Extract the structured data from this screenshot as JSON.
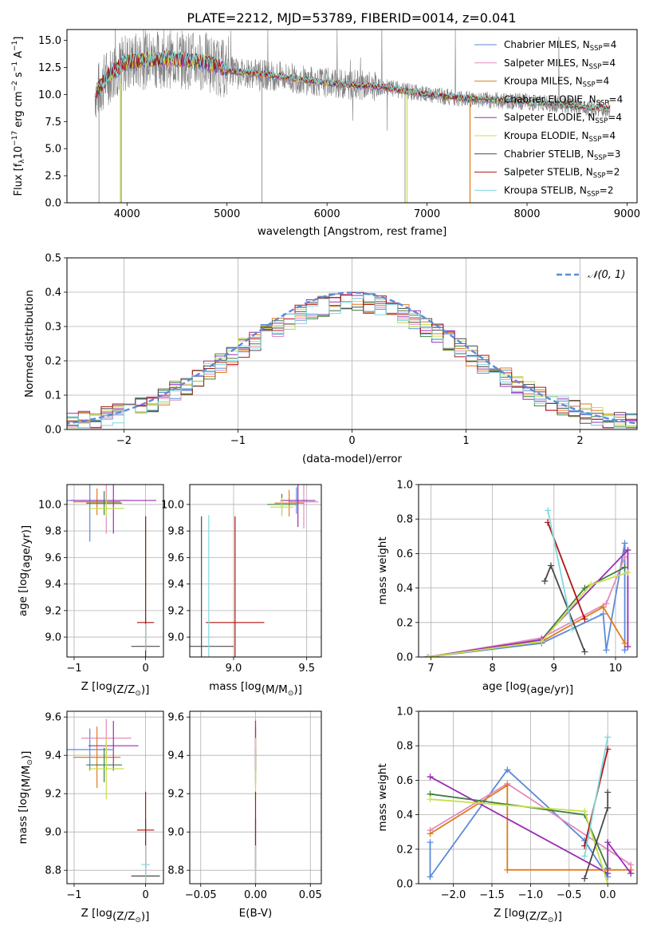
{
  "figure_title": "PLATE=2212, MJD=53789, FIBERID=0014, z=0.041",
  "models": [
    {
      "name": "Chabrier MILES, N_SSP=4",
      "label": "Chabrier MILES, N",
      "sub": "SSP",
      "eq": "=4",
      "color": "#5b8bd9"
    },
    {
      "name": "Salpeter MILES, N_SSP=4",
      "label": "Salpeter MILES, N",
      "sub": "SSP",
      "eq": "=4",
      "color": "#e38bc0"
    },
    {
      "name": "Kroupa MILES, N_SSP=4",
      "label": "Kroupa MILES, N",
      "sub": "SSP",
      "eq": "=4",
      "color": "#e07b1c"
    },
    {
      "name": "Chabrier ELODIE, N_SSP=4",
      "label": "Chabrier ELODIE, N",
      "sub": "SSP",
      "eq": "=4",
      "color": "#3f7f3f"
    },
    {
      "name": "Salpeter ELODIE, N_SSP=4",
      "label": "Salpeter ELODIE, N",
      "sub": "SSP",
      "eq": "=4",
      "color": "#9b2fb0"
    },
    {
      "name": "Kroupa ELODIE, N_SSP=4",
      "label": "Kroupa ELODIE, N",
      "sub": "SSP",
      "eq": "=4",
      "color": "#c8e04a"
    },
    {
      "name": "Chabrier STELIB, N_SSP=3",
      "label": "Chabrier STELIB, N",
      "sub": "SSP",
      "eq": "=3",
      "color": "#4a4a4a"
    },
    {
      "name": "Salpeter STELIB, N_SSP=2",
      "label": "Salpeter STELIB, N",
      "sub": "SSP",
      "eq": "=2",
      "color": "#b01515"
    },
    {
      "name": "Kroupa STELIB, N_SSP=2",
      "label": "Kroupa STELIB, N",
      "sub": "SSP",
      "eq": "=2",
      "color": "#7fd8de"
    }
  ],
  "chart_data": [
    {
      "type": "line",
      "title": "PLATE=2212, MJD=53789, FIBERID=0014, z=0.041",
      "xlabel": "wavelength [Angstrom, rest frame]",
      "ylabel": "Flux [f_λ 10^-17 erg cm^-2 s^-1 A^-1]",
      "xlim": [
        3400,
        9100
      ],
      "ylim": [
        0,
        16
      ],
      "xticks": [
        4000,
        5000,
        6000,
        7000,
        8000,
        9000
      ],
      "yticks": [
        0.0,
        2.5,
        5.0,
        7.5,
        10.0,
        12.5,
        15.0
      ],
      "legend": "upper right",
      "grid": false,
      "continuum": {
        "x": [
          3700,
          3800,
          3900,
          4000,
          4200,
          4400,
          4600,
          4800,
          4900,
          5000,
          5200,
          5400,
          5600,
          5800,
          6000,
          6200,
          6400,
          6600,
          6800,
          7000,
          7200,
          7400,
          7600,
          7800,
          8000,
          8200,
          8400,
          8600,
          8800
        ],
        "y": [
          10.2,
          11.6,
          12.4,
          13.0,
          13.2,
          13.3,
          13.2,
          13.0,
          12.6,
          12.2,
          12.0,
          11.8,
          11.6,
          11.3,
          11.1,
          10.9,
          10.8,
          10.6,
          10.3,
          10.0,
          9.8,
          9.6,
          9.5,
          9.4,
          9.3,
          9.2,
          9.0,
          8.8,
          8.7
        ]
      }
    },
    {
      "type": "bar",
      "xlabel": "(data-model)/error",
      "ylabel": "Normed distribution",
      "xlim": [
        -2.5,
        2.5
      ],
      "ylim": [
        0,
        0.5
      ],
      "xticks": [
        -2,
        -1,
        0,
        1,
        2
      ],
      "yticks": [
        0.0,
        0.1,
        0.2,
        0.3,
        0.4,
        0.5
      ],
      "grid": true,
      "legend": "upper right",
      "reference_label": "𝒩(0, 1)",
      "reference_color": "#5b8bd9"
    },
    {
      "type": "scatter",
      "xlabel": "Z [log10(Z/Z⊙)]",
      "ylabel": "age  [log10(age/yr)]",
      "xlim": [
        -1.1,
        0.25
      ],
      "ylim": [
        8.85,
        10.15
      ],
      "xticks": [
        -1,
        0
      ],
      "yticks": [
        9.0,
        9.2,
        9.4,
        9.6,
        9.8,
        10.0
      ],
      "grid": true,
      "points": [
        {
          "x": -0.78,
          "y": 10.03,
          "xerr": 0.32,
          "yerr": 0.31,
          "model": 0
        },
        {
          "x": -0.55,
          "y": 10.03,
          "xerr": 0.35,
          "yerr": 0.25,
          "model": 1
        },
        {
          "x": -0.68,
          "y": 10.02,
          "xerr": 0.33,
          "yerr": 0.1,
          "model": 2
        },
        {
          "x": -0.58,
          "y": 10.01,
          "xerr": 0.25,
          "yerr": 0.09,
          "model": 3
        },
        {
          "x": -0.45,
          "y": 10.03,
          "xerr": 0.6,
          "yerr": 0.25,
          "model": 4
        },
        {
          "x": -0.55,
          "y": 9.97,
          "xerr": 0.25,
          "yerr": 0.07,
          "model": 5
        },
        {
          "x": 0.0,
          "y": 8.93,
          "xerr": 0.2,
          "yerr": 0.98,
          "model": 6
        },
        {
          "x": 0.0,
          "y": 9.11,
          "xerr": 0.12,
          "yerr": 0.8,
          "model": 7
        },
        {
          "x": 0.0,
          "y": 9.0,
          "xerr": 0.02,
          "yerr": 0.1,
          "model": 8
        }
      ]
    },
    {
      "type": "scatter",
      "xlabel": "mass [log10(M/M⊙)]",
      "ylabel": "",
      "xlim": [
        8.7,
        9.6
      ],
      "ylim": [
        8.85,
        10.15
      ],
      "xticks": [
        9.0,
        9.5
      ],
      "yticks": [
        9.0,
        9.2,
        9.4,
        9.6,
        9.8,
        10.0
      ],
      "grid": true,
      "points": [
        {
          "x": 9.43,
          "y": 10.03,
          "xerr": 0.08,
          "yerr": 0.1,
          "model": 0
        },
        {
          "x": 9.48,
          "y": 10.02,
          "xerr": 0.1,
          "yerr": 0.2,
          "model": 1
        },
        {
          "x": 9.38,
          "y": 10.01,
          "xerr": 0.1,
          "yerr": 0.1,
          "model": 2
        },
        {
          "x": 9.33,
          "y": 10.0,
          "xerr": 0.1,
          "yerr": 0.08,
          "model": 3
        },
        {
          "x": 9.44,
          "y": 10.03,
          "xerr": 0.12,
          "yerr": 0.2,
          "model": 4
        },
        {
          "x": 9.33,
          "y": 9.98,
          "xerr": 0.08,
          "yerr": 0.07,
          "model": 5
        },
        {
          "x": 8.78,
          "y": 8.93,
          "xerr": 0.22,
          "yerr": 0.98,
          "model": 6
        },
        {
          "x": 9.01,
          "y": 9.11,
          "xerr": 0.2,
          "yerr": 0.8,
          "model": 7
        },
        {
          "x": 8.83,
          "y": 9.0,
          "xerr": 0.02,
          "yerr": 0.92,
          "model": 8
        }
      ]
    },
    {
      "type": "line",
      "xlabel": "age  [log10(age/yr)]",
      "ylabel": "mass weight",
      "xlim": [
        6.8,
        10.35
      ],
      "ylim": [
        0,
        1
      ],
      "xticks": [
        7,
        8,
        9,
        10
      ],
      "yticks": [
        0.0,
        0.2,
        0.4,
        0.6,
        0.8,
        1.0
      ],
      "grid": true,
      "series": [
        {
          "model": 0,
          "x": [
            6.95,
            8.8,
            9.8,
            9.85,
            10.15,
            10.15
          ],
          "y": [
            0.0,
            0.08,
            0.25,
            0.04,
            0.66,
            0.04
          ]
        },
        {
          "model": 1,
          "x": [
            6.95,
            8.8,
            9.85,
            10.15
          ],
          "y": [
            0.0,
            0.11,
            0.31,
            0.58
          ]
        },
        {
          "model": 2,
          "x": [
            6.95,
            8.8,
            9.8,
            10.15
          ],
          "y": [
            0.0,
            0.09,
            0.29,
            0.08
          ]
        },
        {
          "model": 3,
          "x": [
            6.95,
            8.8,
            9.5,
            10.15
          ],
          "y": [
            0.0,
            0.1,
            0.4,
            0.52
          ]
        },
        {
          "model": 4,
          "x": [
            6.95,
            8.8,
            10.2,
            10.2
          ],
          "y": [
            0.0,
            0.1,
            0.62,
            0.06
          ]
        },
        {
          "model": 5,
          "x": [
            6.95,
            8.8,
            9.6,
            10.2
          ],
          "y": [
            0.0,
            0.09,
            0.42,
            0.49
          ]
        },
        {
          "model": 6,
          "x": [
            8.85,
            8.95,
            9.5
          ],
          "y": [
            0.44,
            0.53,
            0.03
          ]
        },
        {
          "model": 7,
          "x": [
            8.9,
            9.5
          ],
          "y": [
            0.78,
            0.22
          ]
        },
        {
          "model": 8,
          "x": [
            8.9,
            9.3
          ],
          "y": [
            0.85,
            0.16
          ]
        }
      ]
    },
    {
      "type": "scatter",
      "xlabel": "Z [log10(Z/Z⊙)]",
      "ylabel": "mass [log10(M/M⊙)]",
      "xlim": [
        -1.1,
        0.25
      ],
      "ylim": [
        8.73,
        9.63
      ],
      "xticks": [
        -1,
        0
      ],
      "yticks": [
        8.8,
        9.0,
        9.2,
        9.4,
        9.6
      ],
      "grid": true,
      "points": [
        {
          "x": -0.78,
          "y": 9.43,
          "xerr": 0.32,
          "yerr": 0.11,
          "model": 0
        },
        {
          "x": -0.55,
          "y": 9.49,
          "xerr": 0.35,
          "yerr": 0.1,
          "model": 1
        },
        {
          "x": -0.68,
          "y": 9.39,
          "xerr": 0.33,
          "yerr": 0.16,
          "model": 2
        },
        {
          "x": -0.58,
          "y": 9.35,
          "xerr": 0.25,
          "yerr": 0.09,
          "model": 3
        },
        {
          "x": -0.45,
          "y": 9.45,
          "xerr": 0.35,
          "yerr": 0.13,
          "model": 4
        },
        {
          "x": -0.55,
          "y": 9.33,
          "xerr": 0.25,
          "yerr": 0.16,
          "model": 5
        },
        {
          "x": 0.0,
          "y": 8.77,
          "xerr": 0.2,
          "yerr": 0.3,
          "model": 6
        },
        {
          "x": 0.0,
          "y": 9.01,
          "xerr": 0.12,
          "yerr": 0.2,
          "model": 7
        },
        {
          "x": 0.0,
          "y": 8.83,
          "xerr": 0.06,
          "yerr": 0.1,
          "model": 8
        }
      ]
    },
    {
      "type": "scatter",
      "xlabel": "E(B-V)",
      "ylabel": "",
      "xlim": [
        -0.06,
        0.06
      ],
      "ylim": [
        8.73,
        9.63
      ],
      "xticks": [
        -0.05,
        0.0,
        0.05
      ],
      "yticks": [
        8.8,
        9.0,
        9.2,
        9.4,
        9.6
      ],
      "grid": true,
      "points": [
        {
          "x": 0.0,
          "y": 9.43,
          "yerr": 0.11,
          "model": 0
        },
        {
          "x": 0.0,
          "y": 9.49,
          "yerr": 0.1,
          "model": 1
        },
        {
          "x": 0.0,
          "y": 9.39,
          "yerr": 0.16,
          "model": 2
        },
        {
          "x": 0.0,
          "y": 9.35,
          "yerr": 0.09,
          "model": 3
        },
        {
          "x": 0.0,
          "y": 9.45,
          "yerr": 0.13,
          "model": 4
        },
        {
          "x": 0.0,
          "y": 9.33,
          "yerr": 0.16,
          "model": 5
        },
        {
          "x": 0.0,
          "y": 8.77,
          "yerr": 0.3,
          "model": 6
        },
        {
          "x": 0.0,
          "y": 9.01,
          "yerr": 0.2,
          "model": 7
        },
        {
          "x": 0.0,
          "y": 8.83,
          "yerr": 0.1,
          "model": 8
        }
      ]
    },
    {
      "type": "line",
      "xlabel": "Z [log10(Z/Z⊙)]",
      "ylabel": "mass weight",
      "xlim": [
        -2.45,
        0.38
      ],
      "ylim": [
        0,
        1
      ],
      "xticks": [
        -2.0,
        -1.5,
        -1.0,
        -0.5,
        0.0
      ],
      "yticks": [
        0.0,
        0.2,
        0.4,
        0.6,
        0.8,
        1.0
      ],
      "grid": true,
      "series": [
        {
          "model": 0,
          "x": [
            -2.3,
            -2.3,
            -1.3,
            -0.3,
            0.0
          ],
          "y": [
            0.24,
            0.04,
            0.66,
            0.25,
            0.04
          ]
        },
        {
          "model": 1,
          "x": [
            -2.3,
            -1.3,
            0.3,
            0.3
          ],
          "y": [
            0.31,
            0.58,
            0.11,
            0.06
          ]
        },
        {
          "model": 2,
          "x": [
            -2.3,
            -1.3,
            -1.3,
            0.3
          ],
          "y": [
            0.29,
            0.57,
            0.08,
            0.08
          ]
        },
        {
          "model": 3,
          "x": [
            -2.3,
            -0.3,
            0.0
          ],
          "y": [
            0.52,
            0.4,
            0.09
          ]
        },
        {
          "model": 4,
          "x": [
            -2.3,
            0.0,
            0.0,
            0.3
          ],
          "y": [
            0.62,
            0.06,
            0.24,
            0.06
          ]
        },
        {
          "model": 5,
          "x": [
            -2.3,
            -0.3,
            0.0
          ],
          "y": [
            0.49,
            0.42,
            0.0
          ]
        },
        {
          "model": 6,
          "x": [
            -0.3,
            0.0,
            0.0
          ],
          "y": [
            0.03,
            0.44,
            0.53
          ]
        },
        {
          "model": 7,
          "x": [
            -0.3,
            0.0
          ],
          "y": [
            0.22,
            0.78
          ]
        },
        {
          "model": 8,
          "x": [
            -0.3,
            0.0
          ],
          "y": [
            0.16,
            0.85
          ]
        }
      ]
    }
  ]
}
